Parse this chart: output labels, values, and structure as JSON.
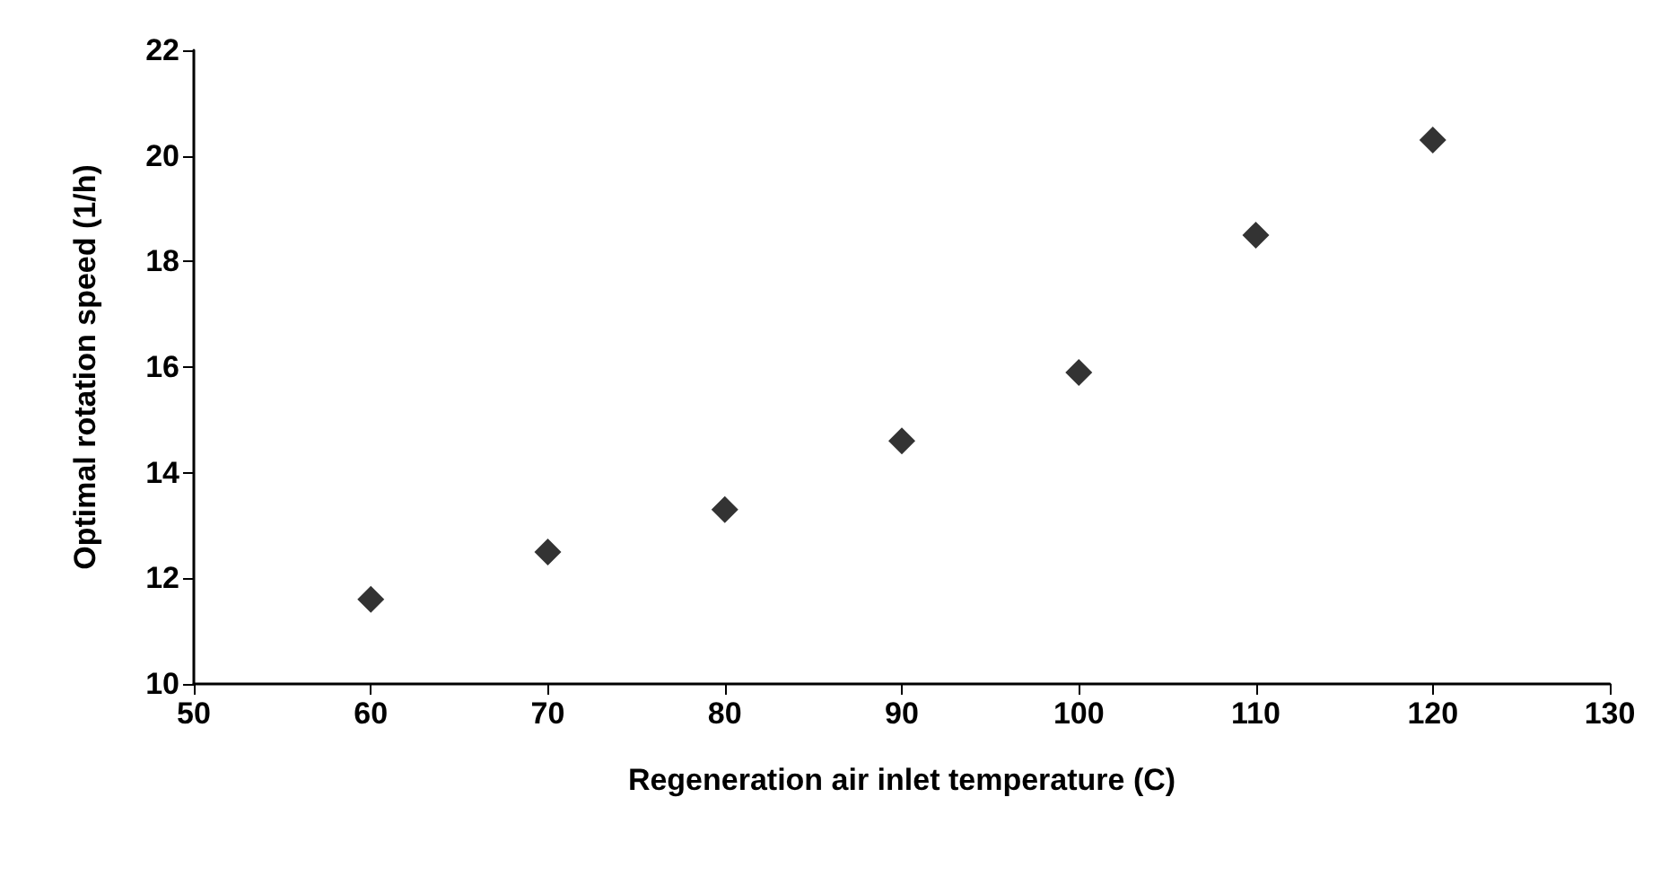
{
  "chart_data": {
    "type": "scatter",
    "xlabel": "Regeneration air inlet temperature (C)",
    "ylabel": "Optimal rotation speed (1/h)",
    "x": [
      60,
      70,
      80,
      90,
      100,
      110,
      120
    ],
    "series": [
      {
        "color": "#000000",
        "values": [
          11.6,
          12.5,
          13.3,
          14.6,
          15.9,
          18.5,
          20.3
        ]
      }
    ],
    "xlim": [
      50,
      130
    ],
    "xticks": [
      50,
      60,
      70,
      80,
      90,
      100,
      110,
      120,
      130
    ],
    "ylim": [
      10,
      22
    ],
    "yticks": [
      10,
      12,
      14,
      16,
      18,
      20,
      22
    ],
    "marker": "diamond"
  }
}
